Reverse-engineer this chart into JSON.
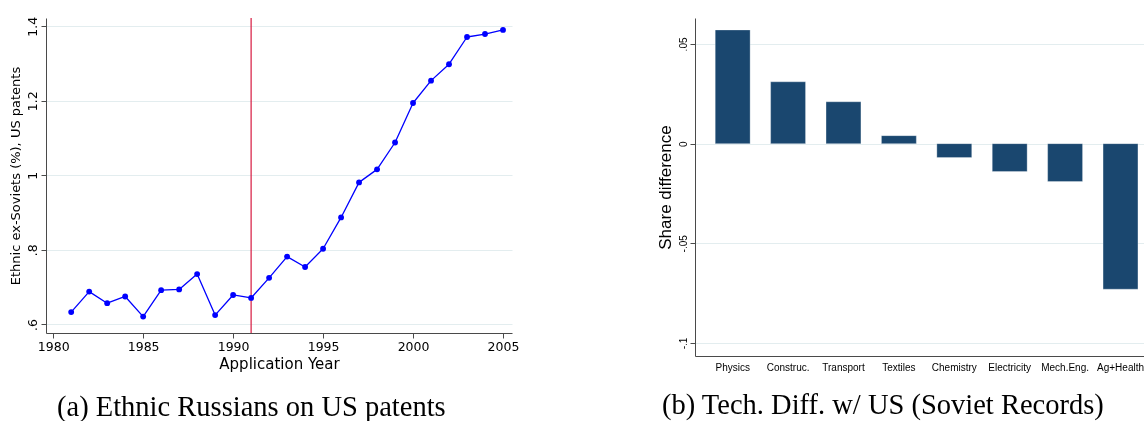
{
  "chart_data": [
    {
      "type": "line",
      "title": "(a) Ethnic Russians on US patents",
      "xlabel": "Application Year",
      "ylabel": "Ethnic ex-Soviets (%), US patents",
      "x": [
        1981,
        1982,
        1983,
        1984,
        1985,
        1986,
        1987,
        1988,
        1989,
        1990,
        1991,
        1992,
        1993,
        1994,
        1995,
        1996,
        1997,
        1998,
        1999,
        2000,
        2001,
        2002,
        2003,
        2004,
        2005
      ],
      "series": [
        {
          "color": "#0000ff",
          "values": [
            0.633,
            0.688,
            0.657,
            0.675,
            0.621,
            0.692,
            0.694,
            0.735,
            0.625,
            0.679,
            0.671,
            0.725,
            0.782,
            0.754,
            0.803,
            0.887,
            0.981,
            1.016,
            1.088,
            1.194,
            1.254,
            1.298,
            1.371,
            1.379,
            1.39
          ]
        }
      ],
      "xlim": [
        1979.6,
        2005.5
      ],
      "xticks": [
        1980,
        1985,
        1990,
        1995,
        2000,
        2005
      ],
      "ylim": [
        0.577,
        1.422
      ],
      "yticks": [
        {
          "value": 0.6,
          "label": ".6"
        },
        {
          "value": 0.8,
          "label": ".8"
        },
        1,
        1.2,
        1.4
      ],
      "ref_lines": [
        {
          "axis": "x",
          "value": 1991,
          "color": "#d7193f"
        }
      ],
      "grid": "y",
      "marker": "circle",
      "line_style": "solid"
    },
    {
      "type": "bar",
      "title": "(b) Tech. Diff. w/ US (Soviet Records)",
      "ylabel": "Share difference",
      "categories": [
        "Physics",
        "Construc.",
        "Transport",
        "Textiles",
        "Chemistry",
        "Electricity",
        "Mech.Eng.",
        "Ag+Health"
      ],
      "values": [
        0.057,
        0.031,
        0.021,
        0.004,
        -0.007,
        -0.014,
        -0.019,
        -0.073
      ],
      "color": "#1a476f",
      "ylim": [
        -0.1065,
        0.063
      ],
      "yticks": [
        {
          "value": -0.1,
          "label": "-.1"
        },
        {
          "value": -0.05,
          "label": "-.05"
        },
        0,
        {
          "value": 0.05,
          "label": ".05"
        }
      ],
      "grid": "y"
    }
  ]
}
